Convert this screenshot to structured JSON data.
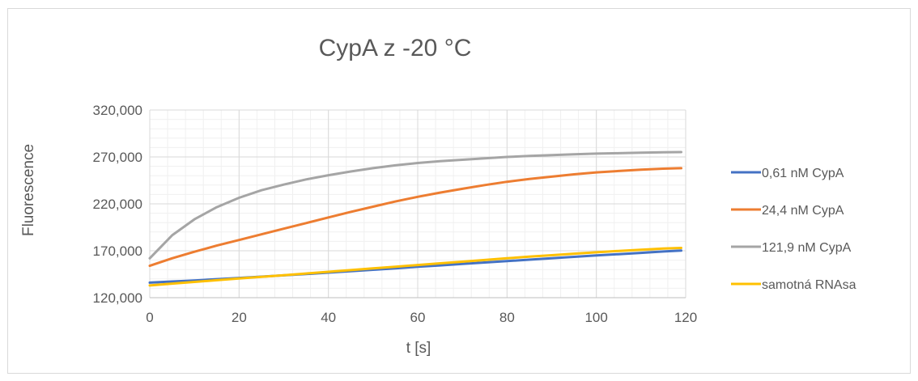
{
  "chart_data": {
    "type": "line",
    "title": "CypA z -20 °C",
    "xlabel": "t [s]",
    "ylabel": "Fluorescence",
    "xlim": [
      0,
      120
    ],
    "ylim": [
      120000,
      320000
    ],
    "x_ticks": [
      0,
      20,
      40,
      60,
      80,
      100,
      120
    ],
    "x_tick_labels": [
      "0",
      "20",
      "40",
      "60",
      "80",
      "100",
      "120"
    ],
    "y_ticks": [
      120000,
      170000,
      220000,
      270000,
      320000
    ],
    "y_tick_labels": [
      "120,000",
      "170,000",
      "220,000",
      "270,000",
      "320,000"
    ],
    "grid": {
      "major": true,
      "minor": true
    },
    "legend_position": "right",
    "x": [
      0,
      5,
      10,
      15,
      20,
      25,
      30,
      35,
      40,
      45,
      50,
      55,
      60,
      65,
      70,
      75,
      80,
      85,
      90,
      95,
      100,
      105,
      110,
      115,
      119
    ],
    "series": [
      {
        "name": "0,61 nM CypA",
        "color": "#4472c4",
        "values": [
          136000,
          137200,
          138400,
          139700,
          141000,
          142400,
          143800,
          145200,
          146700,
          148200,
          149700,
          151300,
          152900,
          154400,
          156000,
          157500,
          159000,
          160500,
          162000,
          163500,
          165000,
          166400,
          167800,
          169200,
          170200
        ]
      },
      {
        "name": "24,4 nM CypA",
        "color": "#ed7d31",
        "values": [
          154000,
          162000,
          169000,
          175500,
          181500,
          187500,
          193500,
          199500,
          205500,
          211500,
          217000,
          222500,
          227500,
          232000,
          236000,
          240000,
          243500,
          246500,
          249000,
          251500,
          253500,
          255000,
          256500,
          257500,
          258000
        ]
      },
      {
        "name": "121,9 nM CypA",
        "color": "#a5a5a5",
        "values": [
          162000,
          186500,
          203500,
          216500,
          226500,
          234500,
          240500,
          246000,
          250500,
          254500,
          258000,
          261000,
          263500,
          265500,
          267000,
          268500,
          270000,
          271000,
          272000,
          272800,
          273500,
          274000,
          274500,
          275000,
          275200
        ]
      },
      {
        "name": "samotná RNAsa",
        "color": "#ffc000",
        "values": [
          133000,
          135000,
          136800,
          138600,
          140400,
          142200,
          144000,
          145800,
          147600,
          149400,
          151200,
          153000,
          154800,
          156600,
          158400,
          160200,
          162000,
          163700,
          165300,
          166900,
          168400,
          169800,
          171100,
          172300,
          173000
        ]
      }
    ]
  }
}
